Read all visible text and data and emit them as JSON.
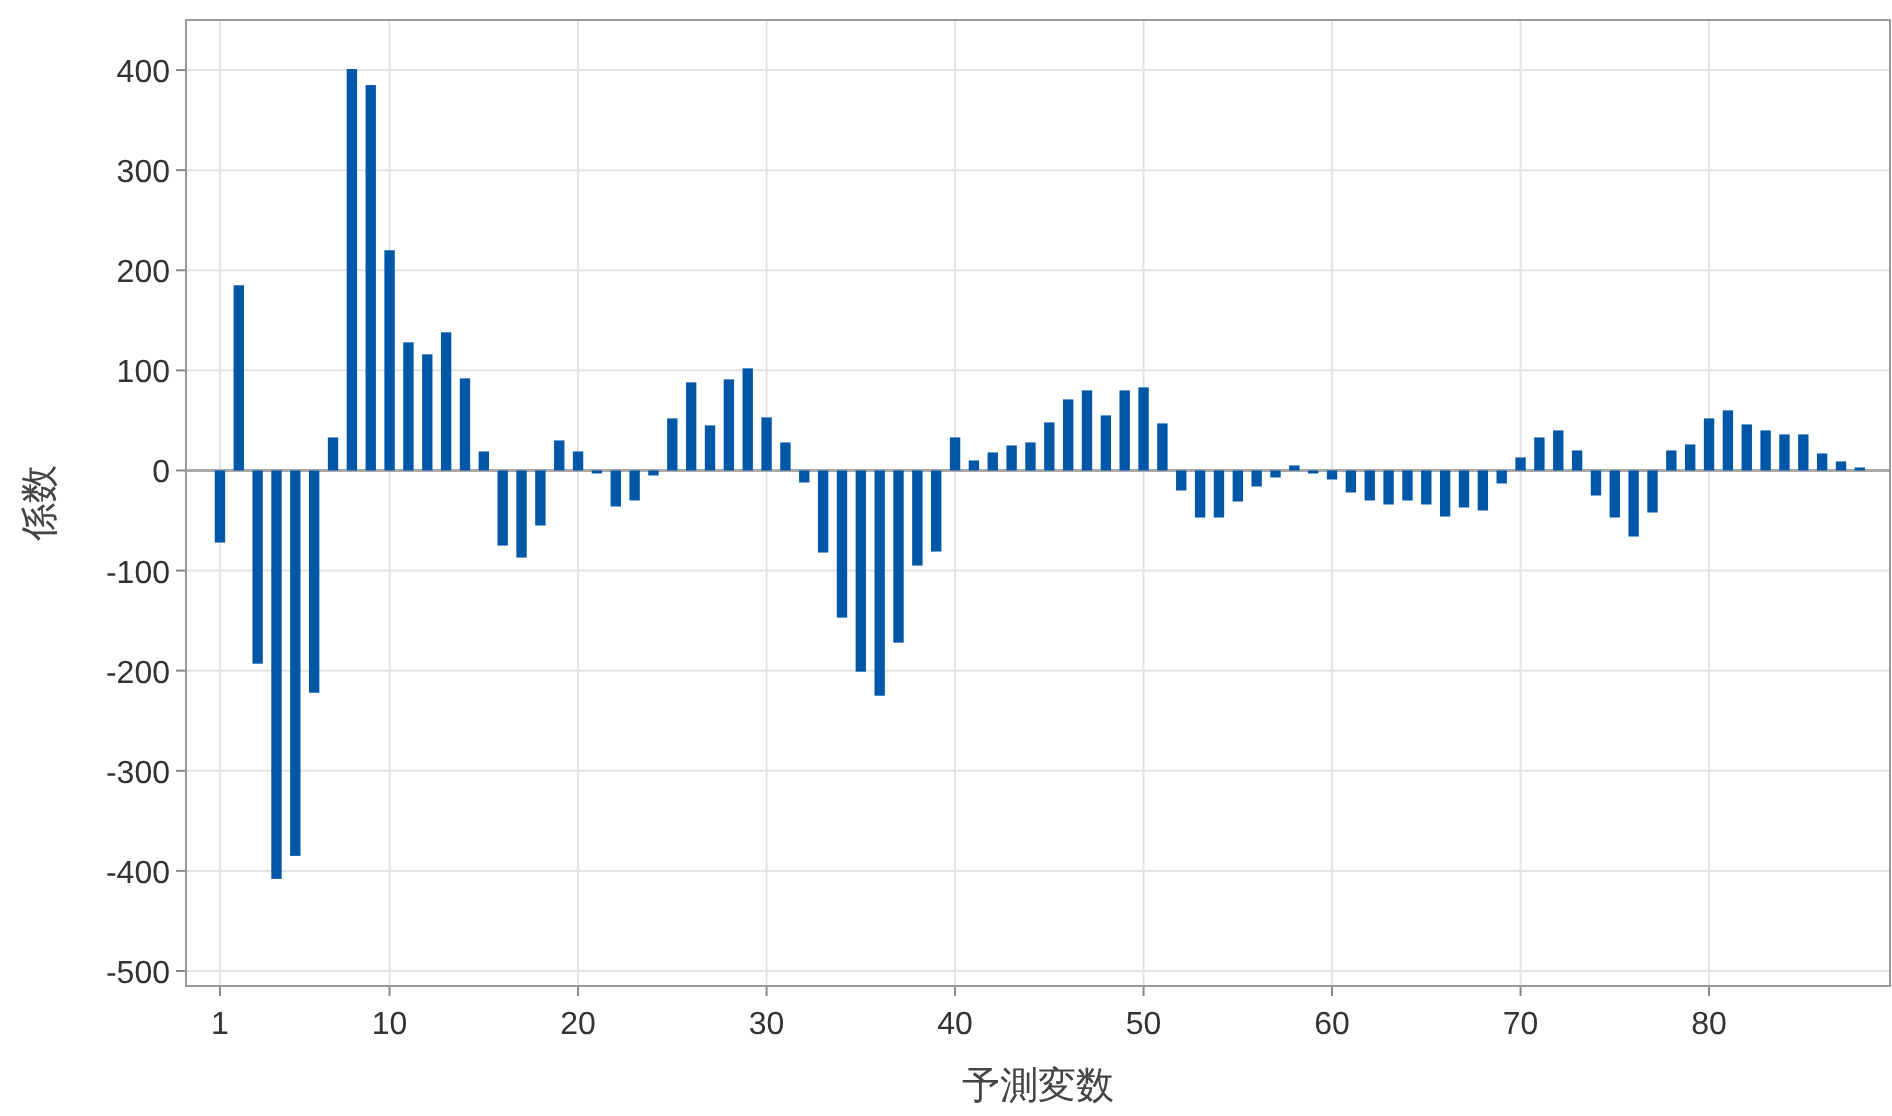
{
  "chart_data": {
    "type": "bar",
    "xlabel": "予測変数",
    "ylabel": "係数",
    "color": "#0057a8",
    "grid": true,
    "x": [
      1,
      2,
      3,
      4,
      5,
      6,
      7,
      8,
      9,
      10,
      11,
      12,
      13,
      14,
      15,
      16,
      17,
      18,
      19,
      20,
      21,
      22,
      23,
      24,
      25,
      26,
      27,
      28,
      29,
      30,
      31,
      32,
      33,
      34,
      35,
      36,
      37,
      38,
      39,
      40,
      41,
      42,
      43,
      44,
      45,
      46,
      47,
      48,
      49,
      50,
      51,
      52,
      53,
      54,
      55,
      56,
      57,
      58,
      59,
      60,
      61,
      62,
      63,
      64,
      65,
      66,
      67,
      68,
      69,
      70,
      71,
      72,
      73,
      74,
      75,
      76,
      77,
      78,
      79,
      80,
      81,
      82,
      83,
      84,
      85,
      86,
      87,
      88
    ],
    "values": [
      -72,
      185,
      -193,
      -408,
      -385,
      -222,
      33,
      401,
      385,
      220,
      128,
      116,
      138,
      92,
      19,
      -75,
      -87,
      -55,
      30,
      19,
      -3,
      -36,
      -30,
      -5,
      52,
      88,
      45,
      91,
      102,
      53,
      28,
      -12,
      -82,
      -147,
      -201,
      -225,
      -172,
      -95,
      -81,
      33,
      10,
      18,
      25,
      28,
      48,
      71,
      80,
      55,
      80,
      83,
      47,
      -20,
      -47,
      -47,
      -31,
      -16,
      -7,
      5,
      -3,
      -9,
      -22,
      -30,
      -34,
      -30,
      -34,
      -46,
      -37,
      -40,
      -13,
      13,
      33,
      40,
      20,
      -25,
      -47,
      -66,
      -42,
      20,
      26,
      52,
      60,
      46,
      40,
      36,
      36,
      17,
      9,
      3
    ],
    "xlim": [
      -0.8,
      89.6
    ],
    "ylim": [
      -515,
      450
    ],
    "xticks": [
      1,
      10,
      20,
      30,
      40,
      50,
      60,
      70,
      80
    ],
    "yticks": [
      -500,
      -400,
      -300,
      -200,
      -100,
      0,
      100,
      200,
      300,
      400
    ]
  }
}
